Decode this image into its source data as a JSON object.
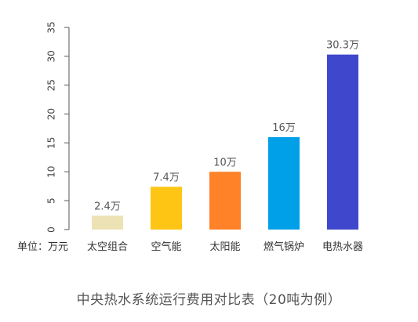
{
  "chart_data": {
    "type": "bar",
    "title": "中央热水系统运行费用对比表（20吨为例）",
    "unit_label": "单位：万元",
    "categories": [
      "太空组合",
      "空气能",
      "太阳能",
      "燃气锅炉",
      "电热水器"
    ],
    "values": [
      2.4,
      7.4,
      10,
      16,
      30.3
    ],
    "value_labels": [
      "2.4万",
      "7.4万",
      "10万",
      "16万",
      "30.3万"
    ],
    "colors": [
      "#ede2b4",
      "#ffc514",
      "#ff8128",
      "#00a0e8",
      "#3f48cc"
    ],
    "ylim": [
      0,
      35
    ],
    "yticks": [
      0,
      5,
      10,
      15,
      20,
      25,
      30,
      35
    ],
    "ytick_labels": [
      "0",
      "5",
      "10",
      "15",
      "20",
      "25",
      "30",
      "35"
    ],
    "grid": false
  }
}
